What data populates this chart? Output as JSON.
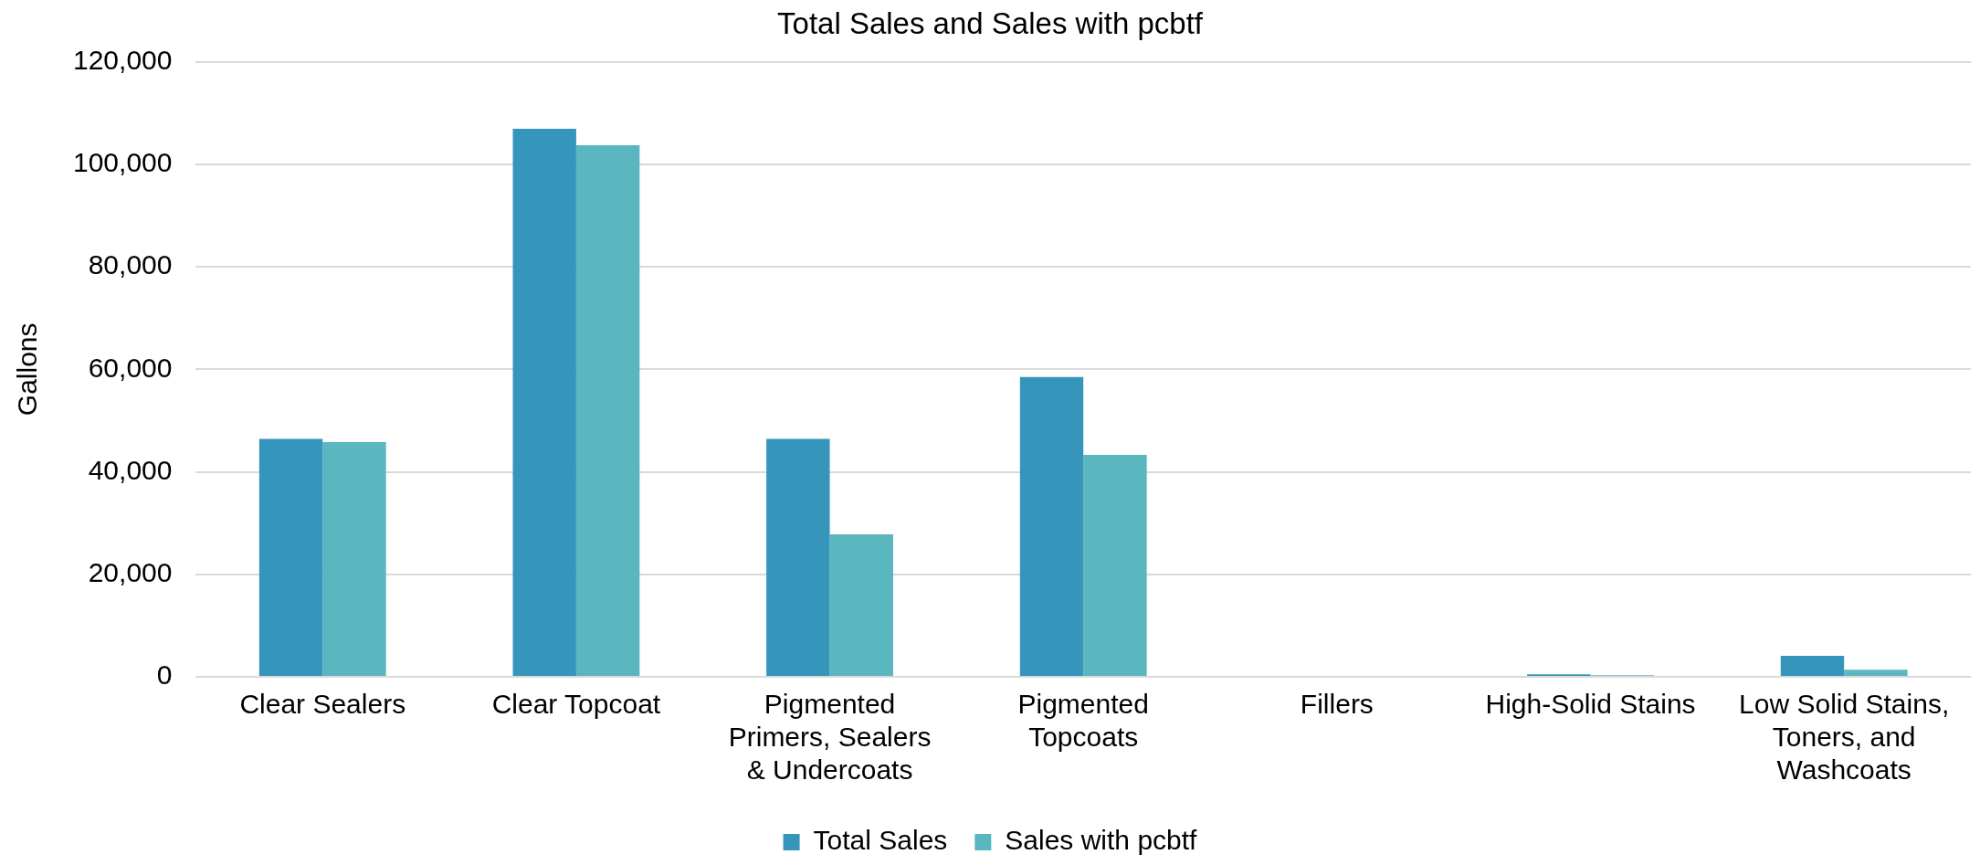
{
  "chart_data": {
    "type": "bar",
    "title": "Total Sales and Sales with pcbtf",
    "ylabel": "Gallons",
    "categories": [
      "Clear Sealers",
      "Clear Topcoat",
      "Pigmented Primers, Sealers & Undercoats",
      "Pigmented Topcoats",
      "Fillers",
      "High-Solid Stains",
      "Low Solid Stains, Toners, and Washcoats"
    ],
    "series": [
      {
        "name": "Total Sales",
        "color": "#3595bb",
        "values": [
          46400,
          106900,
          46400,
          58500,
          0,
          500,
          4100
        ]
      },
      {
        "name": "Sales with pcbtf",
        "color": "#5ab6bf",
        "values": [
          45800,
          103700,
          27800,
          43300,
          0,
          300,
          1400
        ]
      }
    ],
    "ylim": [
      0,
      120000
    ],
    "yticks": [
      0,
      {
        "value": 20000,
        "label": "20,000"
      },
      {
        "value": 40000,
        "label": "40,000"
      },
      {
        "value": 60000,
        "label": "60,000"
      },
      {
        "value": 80000,
        "label": "80,000"
      },
      {
        "value": 100000,
        "label": "100,000"
      },
      {
        "value": 120000,
        "label": "120,000"
      }
    ],
    "grid": "y",
    "legend": "bottom"
  }
}
